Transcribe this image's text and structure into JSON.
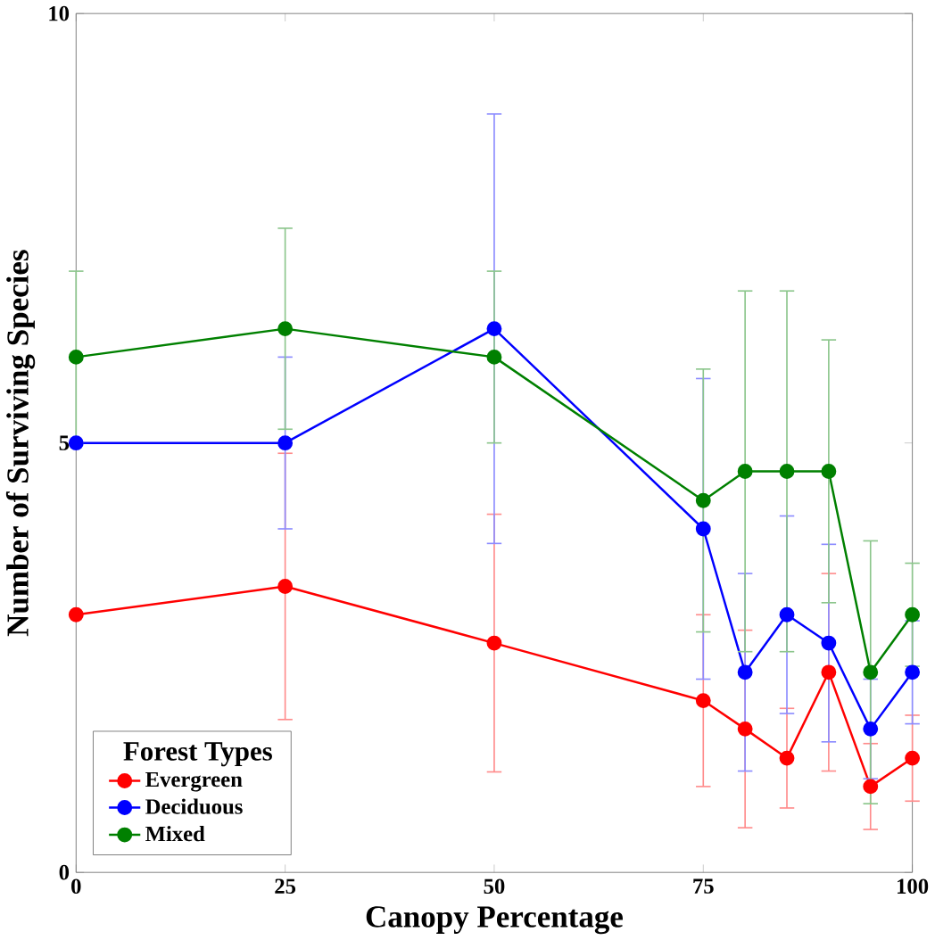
{
  "chart_data": {
    "type": "line",
    "xlabel": "Canopy Percentage",
    "ylabel": "Number of Surviving Species",
    "legend_title": "Forest Types",
    "legend": "bottom left",
    "marker": "circle",
    "line_style": "solid",
    "grid": false,
    "x": [
      0,
      25,
      50,
      75,
      80,
      85,
      90,
      95,
      100
    ],
    "xlim": [
      0,
      100
    ],
    "xticks": [
      0,
      25,
      50,
      75,
      100
    ],
    "ylim": [
      0,
      10
    ],
    "yticks": [
      0,
      5,
      10
    ],
    "series": [
      {
        "name": "Evergreen",
        "color": "#ff0000",
        "values": [
          3,
          3.33,
          2.67,
          2,
          1.67,
          1.33,
          2.33,
          1,
          1.33
        ],
        "errors": [
          null,
          1.55,
          1.5,
          1,
          1.15,
          0.58,
          1.15,
          0.5,
          0.5
        ]
      },
      {
        "name": "Deciduous",
        "color": "#0000ff",
        "values": [
          5,
          5,
          6.33,
          4,
          2.33,
          3,
          2.67,
          1.67,
          2.33
        ],
        "errors": [
          null,
          1,
          2.5,
          1.75,
          1.15,
          1.15,
          1.15,
          0.58,
          0.6
        ]
      },
      {
        "name": "Mixed",
        "color": "#008000",
        "values": [
          6,
          6.33,
          6,
          4.33,
          4.67,
          4.67,
          4.67,
          2.33,
          3
        ],
        "errors": [
          1,
          1.17,
          1,
          1.53,
          2.1,
          2.1,
          1.53,
          1.53,
          0.6
        ]
      }
    ]
  }
}
